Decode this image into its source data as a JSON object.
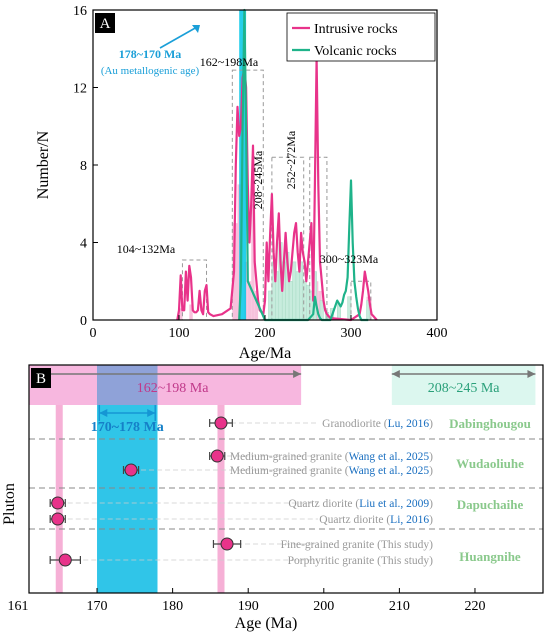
{
  "chart_data": [
    {
      "panel": "A",
      "type": "line",
      "xlabel": "Age/Ma",
      "ylabel": "Number/N",
      "xlim": [
        0,
        400
      ],
      "ylim": [
        0,
        16
      ],
      "xticks": [
        "0",
        "100",
        "200",
        "300",
        "400"
      ],
      "yticks": [
        "0",
        "4",
        "8",
        "12",
        "16"
      ],
      "legend_position": "top-right",
      "series": [
        {
          "name": "Intrusive rocks",
          "color": "#e8338a",
          "x": [
            98,
            100,
            102,
            104,
            106,
            108,
            110,
            112,
            114,
            116,
            118,
            120,
            122,
            124,
            126,
            128,
            130,
            132,
            134,
            136,
            140,
            150,
            160,
            164,
            166,
            168,
            170,
            172,
            174,
            176,
            178,
            180,
            182,
            184,
            186,
            188,
            190,
            192,
            194,
            196,
            198,
            200,
            202,
            204,
            206,
            208,
            210,
            212,
            214,
            216,
            218,
            220,
            222,
            224,
            226,
            228,
            230,
            232,
            234,
            236,
            238,
            240,
            242,
            244,
            246,
            248,
            250,
            252,
            254,
            256,
            258,
            260,
            262,
            264,
            266,
            268,
            270,
            272,
            274,
            276,
            300,
            310,
            312,
            314,
            316,
            318,
            320,
            322,
            324,
            326,
            330
          ],
          "y": [
            0,
            0.5,
            2.3,
            0.5,
            0.5,
            2.5,
            1,
            2.8,
            2.2,
            0.5,
            0.4,
            0.4,
            0.5,
            1.5,
            0.5,
            0.3,
            1.5,
            1.8,
            0.4,
            0.3,
            0.2,
            0.3,
            0.6,
            2.5,
            8,
            11,
            9.5,
            10,
            12.5,
            13,
            12,
            7,
            4,
            6,
            9,
            3,
            2,
            1,
            0.5,
            0.4,
            0.3,
            1,
            4,
            2,
            4.5,
            6.5,
            3.5,
            2,
            4,
            5.5,
            3,
            1.5,
            3,
            4.5,
            3,
            2,
            2.5,
            3.5,
            4.5,
            5,
            3.5,
            2.5,
            4.5,
            3.5,
            3,
            2,
            3,
            4,
            5,
            1,
            7,
            13.5,
            7,
            3,
            2,
            1,
            0.5,
            0.3,
            0.2,
            0.1,
            0,
            0.3,
            0.8,
            1.5,
            2.5,
            2,
            1.5,
            0.8,
            0.3,
            0.2,
            0
          ],
          "peak": 13.5
        },
        {
          "name": "Volcanic rocks",
          "color": "#1fb38a",
          "x": [
            170,
            172,
            174,
            176,
            178,
            180,
            200,
            220,
            240,
            250,
            256,
            258,
            260,
            262,
            264,
            266,
            268,
            270,
            272,
            276,
            280,
            284,
            288,
            290,
            292,
            294,
            296,
            298,
            300,
            302,
            304,
            306,
            308,
            310,
            312,
            314,
            316,
            320
          ],
          "y": [
            0,
            2,
            10,
            16,
            10,
            2,
            0,
            0,
            0,
            0,
            0.3,
            1.2,
            0.7,
            0.3,
            0.1,
            0,
            0,
            0,
            0,
            0,
            0.5,
            1,
            0.7,
            0.9,
            1.3,
            1.5,
            2.2,
            4.8,
            7.2,
            4,
            2,
            1.2,
            0.6,
            0.2,
            0,
            0,
            0,
            0
          ]
        }
      ],
      "annotations": [
        {
          "text": "178~170 Ma",
          "color": "#1a9fd8"
        },
        {
          "text": "(Au metallogenic age)",
          "color": "#1a9fd8"
        },
        {
          "text": "162~198Ma"
        },
        {
          "text": "208~245Ma"
        },
        {
          "text": "252~272Ma"
        },
        {
          "text": "104~132Ma"
        },
        {
          "text": "300~323Ma"
        }
      ],
      "highlight_band": {
        "x": [
          170,
          178
        ],
        "color": "#00c7e8"
      }
    },
    {
      "panel": "B",
      "type": "scatter",
      "xlabel": "Age (Ma)",
      "ylabel": "Pluton",
      "xlim": [
        161,
        229
      ],
      "xticks": [
        "161",
        "170",
        "180",
        "190",
        "200",
        "210",
        "220"
      ],
      "ranges": [
        {
          "label": "162~198 Ma",
          "x": [
            161,
            197
          ],
          "color": "#f7b7df"
        },
        {
          "label": "208~245 Ma",
          "x": [
            209,
            228
          ],
          "color": "#dcf7ef"
        },
        {
          "label": "170~178 Ma",
          "x": [
            170,
            178
          ],
          "color": "#19bfe6"
        }
      ],
      "points": [
        {
          "age": 186.4,
          "err": 1.5,
          "group": "Dabinghougou",
          "label_pre": "Granodiorite (",
          "cite": "Lu, 2016",
          "label_post": ")"
        },
        {
          "age": 185.9,
          "err": 1.0,
          "group": "Wudaoliuhe",
          "label_pre": "Medium-grained granite (",
          "cite": "Wang et al., 2025",
          "label_post": ")"
        },
        {
          "age": 174.5,
          "err": 1.0,
          "group": "Wudaoliuhe",
          "label_pre": "Medium-grained granite (",
          "cite": "Wang et al., 2025",
          "label_post": ")"
        },
        {
          "age": 164.8,
          "err": 1.0,
          "group": "Dapuchaihe",
          "label_pre": "Quartz diorite (",
          "cite": "Liu et al., 2009",
          "label_post": ")"
        },
        {
          "age": 164.8,
          "err": 1.0,
          "group": "Dapuchaihe",
          "label_pre": "Quartz diorite (",
          "cite": "Li, 2016",
          "label_post": ")"
        },
        {
          "age": 187.2,
          "err": 1.8,
          "group": "Huangnihe",
          "label_pre": "Fine-grained granite (",
          "cite": "This study",
          "label_post": ")"
        },
        {
          "age": 165.8,
          "err": 2.0,
          "group": "Huangnihe",
          "label_pre": "Porphyritic granite (",
          "cite": "This study",
          "label_post": ")"
        }
      ],
      "groups": [
        "Dabinghougou",
        "Wudaoliuhe",
        "Dapuchaihe",
        "Huangnihe"
      ],
      "reference_lines": [
        165,
        186.4
      ],
      "colors": {
        "point": "#e8338a",
        "cite": "#1a6fc0",
        "group": "#8ac98c",
        "label": "#999999"
      }
    }
  ]
}
